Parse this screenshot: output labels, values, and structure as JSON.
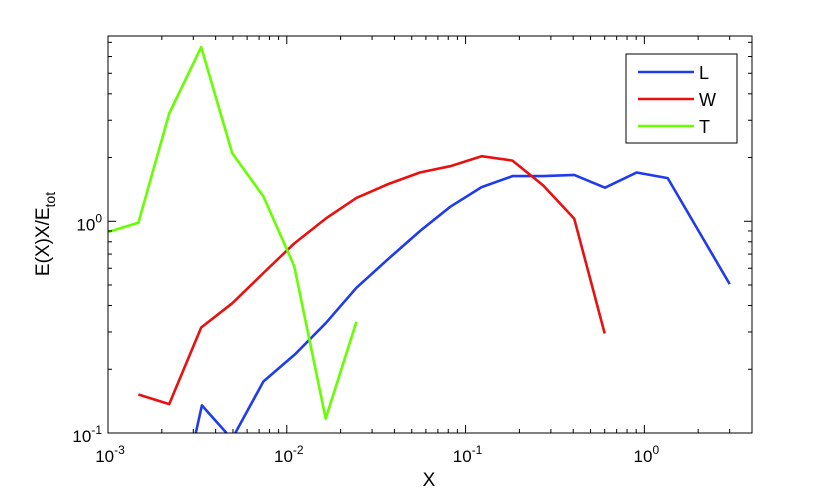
{
  "chart_data": {
    "type": "line",
    "title": "",
    "xlabel": "X",
    "ylabel": "E(X)X/E",
    "ylabel_subscript": "tot",
    "xscale": "log",
    "yscale": "log",
    "xlim": [
      0.001,
      4.0
    ],
    "ylim": [
      0.1,
      7.5
    ],
    "grid": false,
    "legend_position": "top-right",
    "x_ticks": [
      {
        "value": 0.001,
        "base": "10",
        "exp": "-3"
      },
      {
        "value": 0.01,
        "base": "10",
        "exp": "-2"
      },
      {
        "value": 0.1,
        "base": "10",
        "exp": "-1"
      },
      {
        "value": 1.0,
        "base": "10",
        "exp": "0"
      }
    ],
    "y_ticks": [
      {
        "value": 0.1,
        "base": "10",
        "exp": "-1"
      },
      {
        "value": 1.0,
        "base": "10",
        "exp": "0"
      }
    ],
    "series": [
      {
        "name": "L",
        "color": "#1f3bea",
        "segments": [
          [
            [
              0.0031,
              0.1
            ],
            [
              0.00335,
              0.135
            ],
            [
              0.0046,
              0.1
            ]
          ],
          [
            [
              0.00515,
              0.1
            ],
            [
              0.0074,
              0.175
            ],
            [
              0.0111,
              0.235
            ],
            [
              0.0165,
              0.33
            ],
            [
              0.0245,
              0.485
            ],
            [
              0.037,
              0.665
            ],
            [
              0.056,
              0.905
            ],
            [
              0.082,
              1.17
            ],
            [
              0.123,
              1.45
            ],
            [
              0.183,
              1.635
            ],
            [
              0.272,
              1.635
            ],
            [
              0.405,
              1.655
            ],
            [
              0.602,
              1.44
            ],
            [
              0.905,
              1.7
            ],
            [
              1.35,
              1.6
            ],
            [
              3.0,
              0.505
            ]
          ]
        ]
      },
      {
        "name": "W",
        "color": "#e81010",
        "segments": [
          [
            [
              0.00148,
              0.152
            ],
            [
              0.0022,
              0.137
            ],
            [
              0.00332,
              0.315
            ],
            [
              0.00495,
              0.41
            ],
            [
              0.0074,
              0.57
            ],
            [
              0.011,
              0.785
            ],
            [
              0.0165,
              1.03
            ],
            [
              0.0245,
              1.29
            ],
            [
              0.037,
              1.5
            ],
            [
              0.0555,
              1.7
            ],
            [
              0.082,
              1.82
            ],
            [
              0.123,
              2.03
            ],
            [
              0.183,
              1.935
            ],
            [
              0.272,
              1.475
            ],
            [
              0.405,
              1.03
            ],
            [
              0.6,
              0.295
            ]
          ]
        ]
      },
      {
        "name": "T",
        "color": "#66ff00",
        "segments": [
          [
            [
              0.001,
              0.89
            ],
            [
              0.00148,
              0.985
            ],
            [
              0.0022,
              3.23
            ],
            [
              0.00332,
              6.65
            ],
            [
              0.00495,
              2.1
            ],
            [
              0.0074,
              1.31
            ],
            [
              0.011,
              0.615
            ],
            [
              0.0165,
              0.117
            ],
            [
              0.0245,
              0.335
            ]
          ]
        ]
      }
    ]
  }
}
